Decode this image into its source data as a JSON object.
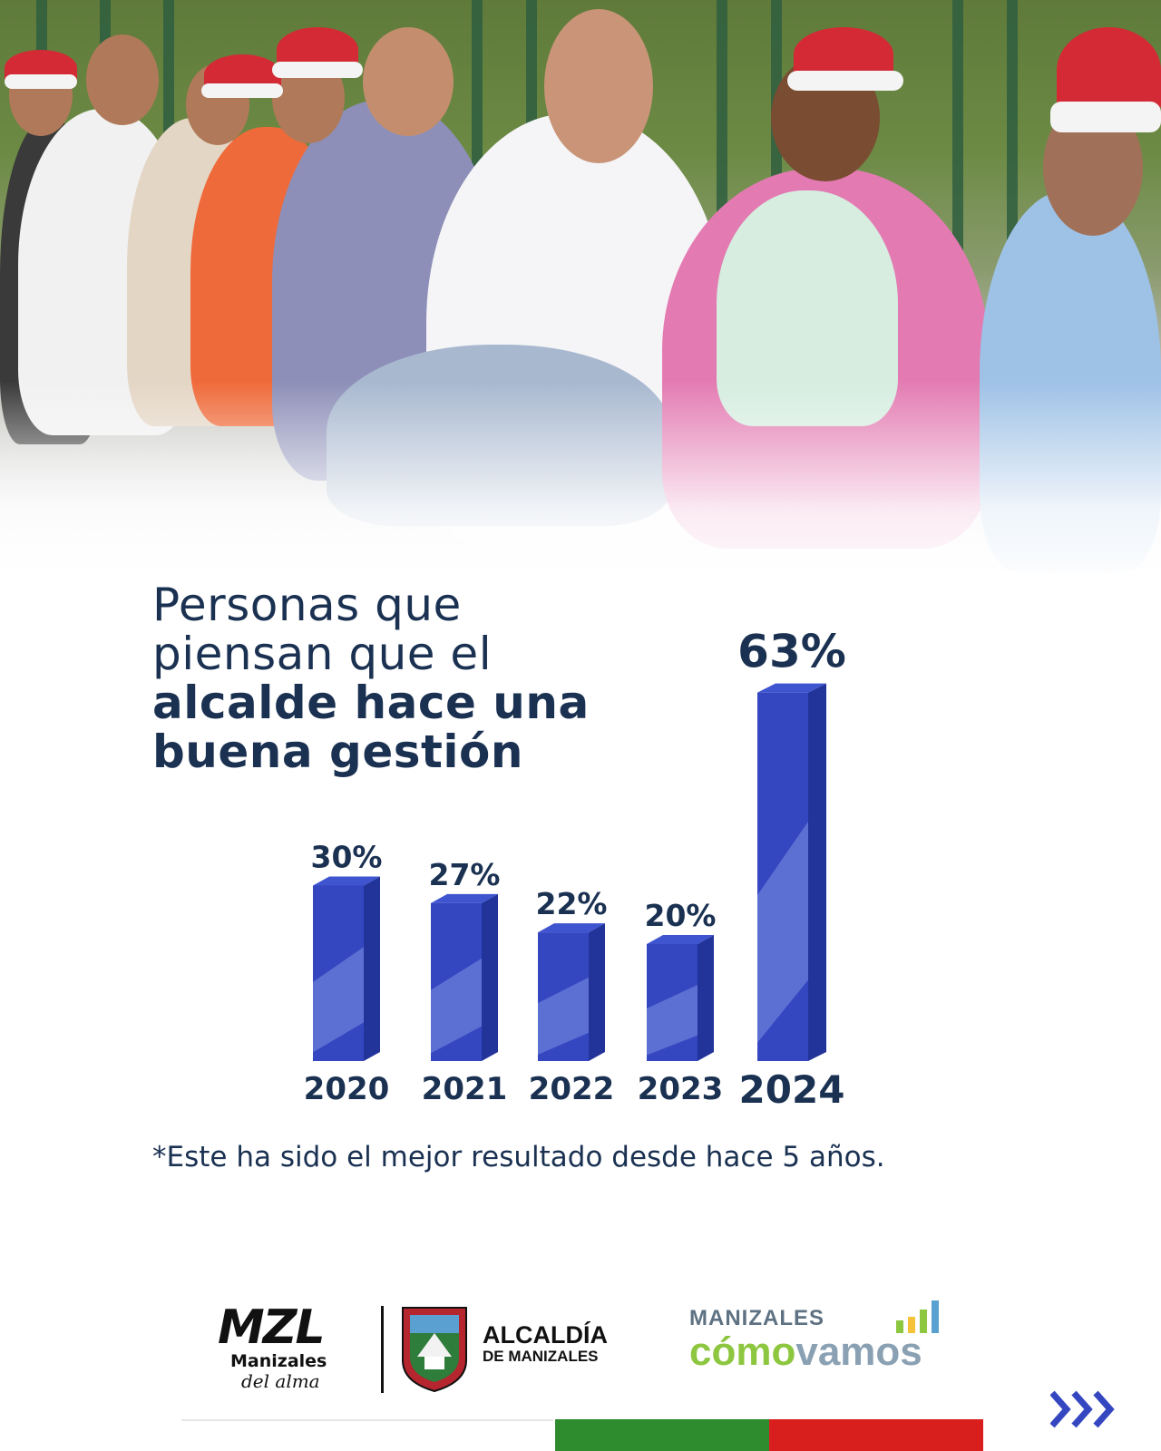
{
  "title": {
    "line1": "Personas que",
    "line2": "piensan que el",
    "line3": "alcalde hace una",
    "line4": "buena gestión"
  },
  "chart_data": {
    "type": "bar",
    "categories": [
      "2020",
      "2021",
      "2022",
      "2023",
      "2024"
    ],
    "values": [
      30,
      27,
      22,
      20,
      63
    ],
    "value_labels": [
      "30%",
      "27%",
      "22%",
      "20%",
      "63%"
    ],
    "unit": "%",
    "bar_color": "#3447c1",
    "bar_side_color": "#22339a",
    "highlight_index": 4
  },
  "note": "*Este ha sido el mejor resultado desde hace 5 años.",
  "logos": {
    "mzl_main": "MZL",
    "mzl_sub": "Manizales",
    "mzl_tagline": "del alma",
    "alcaldia_line1": "ALCALDÍA",
    "alcaldia_line2": "DE MANIZALES",
    "comovamos_line1": "MANIZALES",
    "comovamos_como": "cómo",
    "comovamos_vamos": "vamos"
  },
  "colors": {
    "title": "#1a3152",
    "flag_green": "#2e8b2e",
    "flag_red": "#d91e1e",
    "arrows": "#3447c1"
  },
  "icons": {
    "next": "triple-chevron-right-icon",
    "shield": "manizales-coat-of-arms-icon",
    "bars": "bar-chart-icon"
  }
}
